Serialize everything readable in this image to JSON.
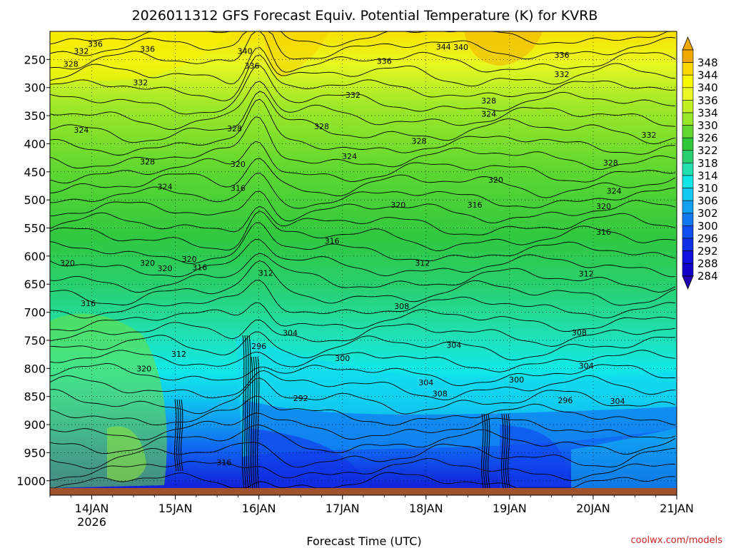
{
  "chart_data": {
    "type": "heatmap",
    "title": "2026011312 GFS Forecast Equiv. Potential Temperature (K) for KVRB",
    "xlabel": "Forecast Time (UTC)",
    "ylabel": "",
    "credit": "coolwx.com/models",
    "x_ticks": [
      {
        "label": "14JAN",
        "sub": "2026",
        "hours": 12
      },
      {
        "label": "15JAN",
        "sub": "",
        "hours": 36
      },
      {
        "label": "16JAN",
        "sub": "",
        "hours": 60
      },
      {
        "label": "17JAN",
        "sub": "",
        "hours": 84
      },
      {
        "label": "18JAN",
        "sub": "",
        "hours": 108
      },
      {
        "label": "19JAN",
        "sub": "",
        "hours": 132
      },
      {
        "label": "20JAN",
        "sub": "",
        "hours": 156
      },
      {
        "label": "21JAN",
        "sub": "",
        "hours": 180
      }
    ],
    "x_range_hours": [
      0,
      180
    ],
    "y_ticks": [
      "250",
      "300",
      "350",
      "400",
      "450",
      "500",
      "550",
      "600",
      "650",
      "700",
      "750",
      "800",
      "850",
      "900",
      "950",
      "1000"
    ],
    "y_tick_values": [
      250,
      300,
      350,
      400,
      450,
      500,
      550,
      600,
      650,
      700,
      750,
      800,
      850,
      900,
      950,
      1000
    ],
    "y_range_hpa": [
      200,
      1013
    ],
    "colorbar": {
      "levels": [
        "348",
        "344",
        "340",
        "336",
        "334",
        "330",
        "326",
        "322",
        "318",
        "314",
        "310",
        "306",
        "302",
        "300",
        "296",
        "292",
        "288",
        "284"
      ],
      "colors": [
        "#f0a800",
        "#f8d800",
        "#f8f800",
        "#e8f820",
        "#c0f020",
        "#98e828",
        "#60d830",
        "#30c838",
        "#28d070",
        "#20e0b0",
        "#10e8e8",
        "#10c8f0",
        "#10a0f0",
        "#1078f0",
        "#1050f0",
        "#1030e8",
        "#1010e0",
        "#1000c8",
        "#2000b0"
      ]
    },
    "contour_labels": [
      {
        "text": "336",
        "t": 13,
        "p": 222
      },
      {
        "text": "332",
        "t": 9,
        "p": 235
      },
      {
        "text": "328",
        "t": 6,
        "p": 258
      },
      {
        "text": "336",
        "t": 28,
        "p": 231
      },
      {
        "text": "332",
        "t": 26,
        "p": 291
      },
      {
        "text": "340",
        "t": 56,
        "p": 235
      },
      {
        "text": "336",
        "t": 58,
        "p": 261
      },
      {
        "text": "336",
        "t": 96,
        "p": 253
      },
      {
        "text": "344",
        "t": 113,
        "p": 227
      },
      {
        "text": "340",
        "t": 118,
        "p": 228
      },
      {
        "text": "336",
        "t": 147,
        "p": 242
      },
      {
        "text": "332",
        "t": 147,
        "p": 276
      },
      {
        "text": "332",
        "t": 87,
        "p": 313
      },
      {
        "text": "328",
        "t": 78,
        "p": 369
      },
      {
        "text": "328",
        "t": 126,
        "p": 323
      },
      {
        "text": "324",
        "t": 126,
        "p": 347
      },
      {
        "text": "328",
        "t": 106,
        "p": 395
      },
      {
        "text": "332",
        "t": 172,
        "p": 384
      },
      {
        "text": "324",
        "t": 9,
        "p": 375
      },
      {
        "text": "328",
        "t": 53,
        "p": 373
      },
      {
        "text": "328",
        "t": 28,
        "p": 432
      },
      {
        "text": "324",
        "t": 86,
        "p": 422
      },
      {
        "text": "328",
        "t": 161,
        "p": 434
      },
      {
        "text": "320",
        "t": 54,
        "p": 436
      },
      {
        "text": "324",
        "t": 33,
        "p": 476
      },
      {
        "text": "316",
        "t": 54,
        "p": 479
      },
      {
        "text": "320",
        "t": 128,
        "p": 464
      },
      {
        "text": "324",
        "t": 162,
        "p": 484
      },
      {
        "text": "320",
        "t": 100,
        "p": 509
      },
      {
        "text": "316",
        "t": 122,
        "p": 509
      },
      {
        "text": "320",
        "t": 159,
        "p": 511
      },
      {
        "text": "316",
        "t": 81,
        "p": 573
      },
      {
        "text": "316",
        "t": 159,
        "p": 557
      },
      {
        "text": "320",
        "t": 5,
        "p": 612
      },
      {
        "text": "320",
        "t": 28,
        "p": 612
      },
      {
        "text": "320",
        "t": 33,
        "p": 622
      },
      {
        "text": "320",
        "t": 40,
        "p": 605
      },
      {
        "text": "316",
        "t": 43,
        "p": 620
      },
      {
        "text": "312",
        "t": 62,
        "p": 630
      },
      {
        "text": "312",
        "t": 107,
        "p": 612
      },
      {
        "text": "312",
        "t": 154,
        "p": 631
      },
      {
        "text": "316",
        "t": 11,
        "p": 684
      },
      {
        "text": "308",
        "t": 101,
        "p": 689
      },
      {
        "text": "304",
        "t": 69,
        "p": 737
      },
      {
        "text": "308",
        "t": 152,
        "p": 736
      },
      {
        "text": "296",
        "t": 60,
        "p": 760
      },
      {
        "text": "304",
        "t": 116,
        "p": 758
      },
      {
        "text": "300",
        "t": 84,
        "p": 782
      },
      {
        "text": "312",
        "t": 37,
        "p": 774
      },
      {
        "text": "320",
        "t": 27,
        "p": 800
      },
      {
        "text": "304",
        "t": 154,
        "p": 795
      },
      {
        "text": "304",
        "t": 108,
        "p": 825
      },
      {
        "text": "308",
        "t": 112,
        "p": 845
      },
      {
        "text": "300",
        "t": 134,
        "p": 820
      },
      {
        "text": "292",
        "t": 72,
        "p": 853
      },
      {
        "text": "296",
        "t": 148,
        "p": 857
      },
      {
        "text": "304",
        "t": 163,
        "p": 858
      },
      {
        "text": "316",
        "t": 50,
        "p": 967
      }
    ]
  }
}
